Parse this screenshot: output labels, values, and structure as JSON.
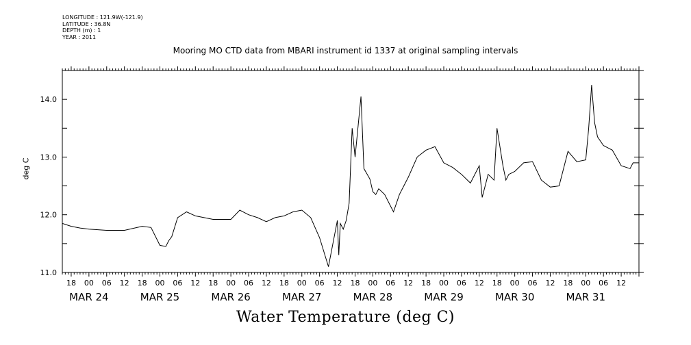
{
  "meta": {
    "longitude": "LONGITUDE : 121.9W(-121.9)",
    "latitude": "LATITUDE : 36.8N",
    "depth": "DEPTH (m) : 1",
    "year": "YEAR : 2011"
  },
  "chart_data": {
    "type": "line",
    "title": "Mooring MO CTD data from MBARI instrument id 1337 at original sampling intervals",
    "xlabel": "Water Temperature (deg C)",
    "ylabel": "deg C",
    "ylim": [
      11.0,
      14.5
    ],
    "yticks": [
      "11.0",
      "12.0",
      "13.0",
      "14.0"
    ],
    "xlim": [
      "MAR 23 15:00",
      "MAR 31 18:00"
    ],
    "hour_tick_labels": [
      "18",
      "00",
      "06",
      "12",
      "18",
      "00",
      "06",
      "12",
      "18",
      "00",
      "06",
      "12",
      "18",
      "00",
      "06",
      "12",
      "18",
      "00",
      "06",
      "12",
      "18",
      "00",
      "06",
      "12",
      "18",
      "00",
      "06",
      "12",
      "18",
      "00",
      "06",
      "12"
    ],
    "date_labels": [
      "MAR 24",
      "MAR 25",
      "MAR 26",
      "MAR 27",
      "MAR 28",
      "MAR 29",
      "MAR 30",
      "MAR 31"
    ],
    "series": [
      {
        "x": [
          "MAR 23 15:00",
          "MAR 23 18:00",
          "MAR 23 21:00",
          "MAR 24 00:00",
          "MAR 24 06:00",
          "MAR 24 12:00",
          "MAR 24 18:00",
          "MAR 24 21:00",
          "MAR 25 00:00",
          "MAR 25 02:00",
          "MAR 25 03:00",
          "MAR 25 04:00",
          "MAR 25 06:00",
          "MAR 25 09:00",
          "MAR 25 12:00",
          "MAR 25 18:00",
          "MAR 26 00:00",
          "MAR 26 03:00",
          "MAR 26 06:00",
          "MAR 26 09:00",
          "MAR 26 12:00",
          "MAR 26 15:00",
          "MAR 26 18:00",
          "MAR 26 21:00",
          "MAR 27 00:00",
          "MAR 27 03:00",
          "MAR 27 06:00",
          "MAR 27 09:00",
          "MAR 27 12:00",
          "MAR 27 12:30",
          "MAR 27 13:00",
          "MAR 27 14:00",
          "MAR 27 15:00",
          "MAR 27 16:00",
          "MAR 27 17:00",
          "MAR 27 18:00",
          "MAR 27 20:00",
          "MAR 27 21:00",
          "MAR 27 23:00",
          "MAR 28 00:00",
          "MAR 28 01:00",
          "MAR 28 02:00",
          "MAR 28 04:00",
          "MAR 28 06:00",
          "MAR 28 07:00",
          "MAR 28 09:00",
          "MAR 28 12:00",
          "MAR 28 15:00",
          "MAR 28 18:00",
          "MAR 28 21:00",
          "MAR 29 00:00",
          "MAR 29 03:00",
          "MAR 29 06:00",
          "MAR 29 09:00",
          "MAR 29 12:00",
          "MAR 29 13:00",
          "MAR 29 15:00",
          "MAR 29 17:00",
          "MAR 29 18:00",
          "MAR 29 20:00",
          "MAR 29 21:00",
          "MAR 29 22:00",
          "MAR 30 00:00",
          "MAR 30 03:00",
          "MAR 30 06:00",
          "MAR 30 09:00",
          "MAR 30 12:00",
          "MAR 30 15:00",
          "MAR 30 18:00",
          "MAR 30 21:00",
          "MAR 31 00:00",
          "MAR 31 01:00",
          "MAR 31 02:00",
          "MAR 31 03:00",
          "MAR 31 04:00",
          "MAR 31 06:00",
          "MAR 31 09:00",
          "MAR 31 12:00",
          "MAR 31 15:00",
          "MAR 31 16:00",
          "MAR 31 18:00"
        ],
        "y": [
          11.85,
          11.8,
          11.77,
          11.75,
          11.73,
          11.73,
          11.8,
          11.78,
          11.47,
          11.45,
          11.55,
          11.62,
          11.95,
          12.05,
          11.98,
          11.92,
          11.92,
          12.08,
          12.0,
          11.95,
          11.88,
          11.95,
          11.98,
          12.05,
          12.08,
          11.95,
          11.6,
          11.1,
          11.9,
          11.3,
          11.85,
          11.75,
          11.9,
          12.2,
          13.5,
          13.0,
          14.05,
          12.8,
          12.62,
          12.4,
          12.35,
          12.45,
          12.35,
          12.15,
          12.05,
          12.35,
          12.65,
          13.0,
          13.12,
          13.18,
          12.9,
          12.82,
          12.7,
          12.55,
          12.85,
          12.3,
          12.7,
          12.6,
          13.5,
          12.85,
          12.6,
          12.7,
          12.75,
          12.9,
          12.92,
          12.6,
          12.48,
          12.5,
          13.1,
          12.92,
          12.95,
          13.5,
          14.25,
          13.6,
          13.35,
          13.2,
          13.12,
          12.85,
          12.8,
          12.9,
          12.9
        ]
      }
    ]
  }
}
